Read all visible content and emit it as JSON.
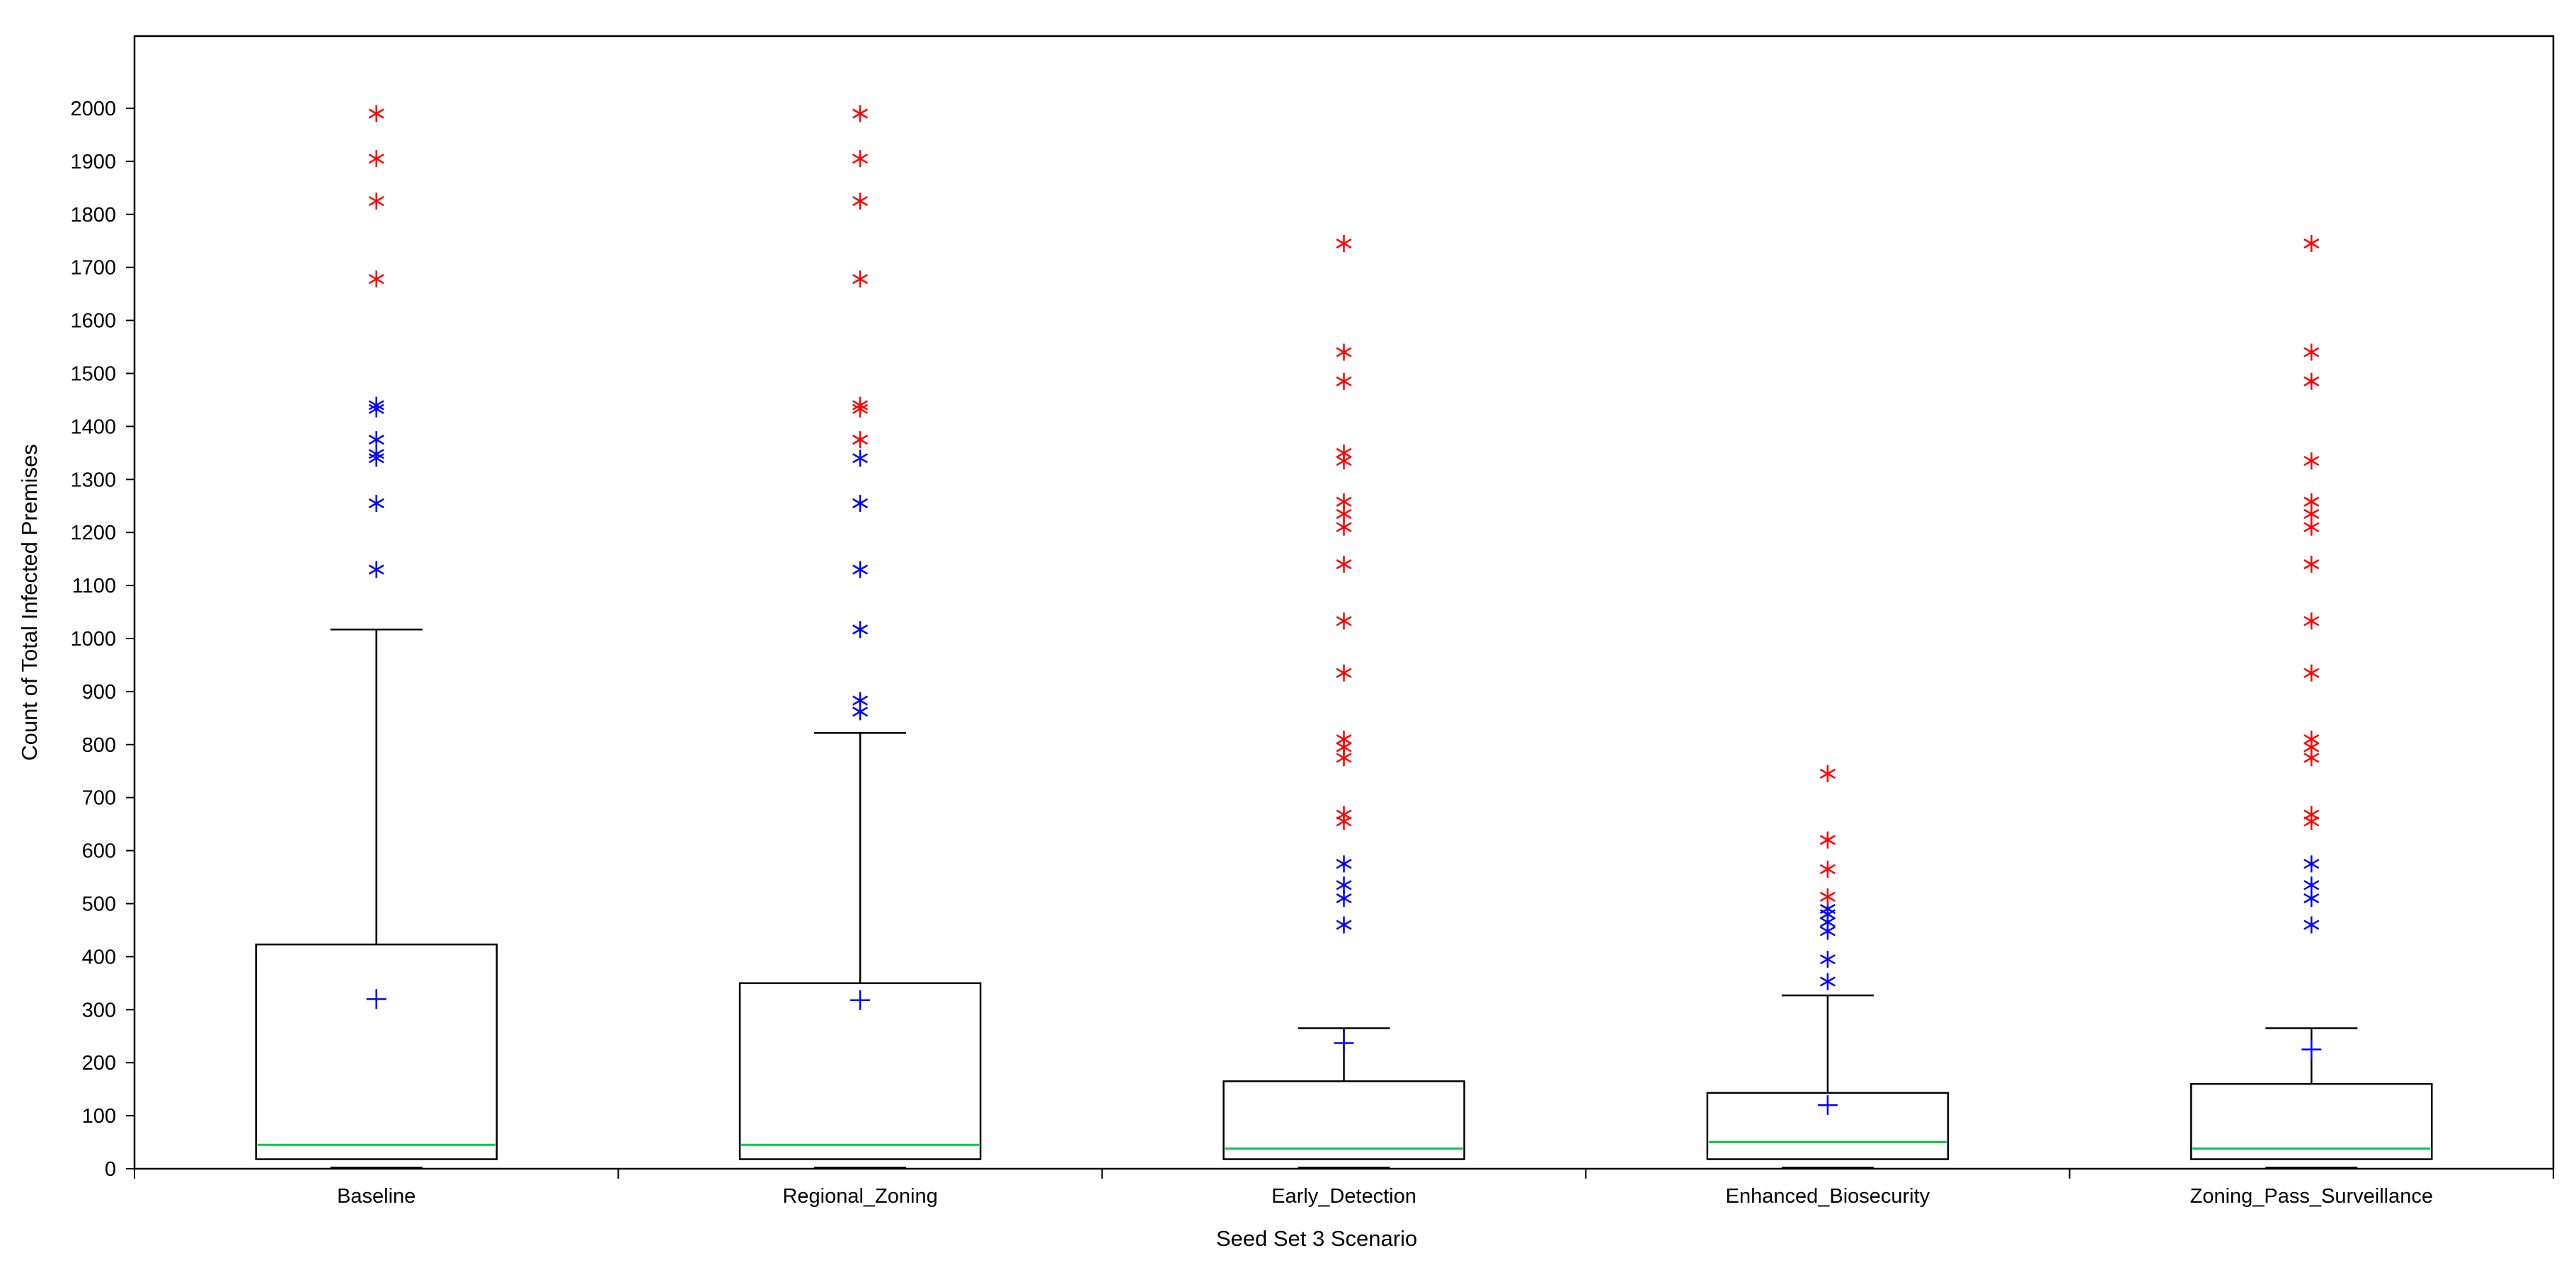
{
  "chart_data": {
    "type": "box",
    "xlabel": "Seed Set 3 Scenario",
    "ylabel": "Count of Total Infected Premises",
    "ylim": [
      0,
      2000
    ],
    "yticks": [
      0,
      100,
      200,
      300,
      400,
      500,
      600,
      700,
      800,
      900,
      1000,
      1100,
      1200,
      1300,
      1400,
      1500,
      1600,
      1700,
      1800,
      1900,
      2000
    ],
    "categories": [
      "Baseline",
      "Regional_Zoning",
      "Early_Detection",
      "Enhanced_Biosecurity",
      "Zoning_Pass_Surveillance"
    ],
    "grid": false,
    "legend": "none",
    "colors": {
      "box": "#000000",
      "median": "#00cc44",
      "mean": "#0000ff",
      "mild_outlier": "#0000ff",
      "extreme_outlier": "#ff0000"
    },
    "boxes": [
      {
        "category": "Baseline",
        "min": 2,
        "q1": 18,
        "median": 45,
        "q3": 423,
        "max": 1017,
        "mean": 320,
        "mild_outliers": [
          1130,
          1255,
          1340,
          1348,
          1375,
          1433,
          1440
        ],
        "extreme_outliers": [
          1678,
          1825,
          1905,
          1990
        ]
      },
      {
        "category": "Regional_Zoning",
        "min": 2,
        "q1": 18,
        "median": 45,
        "q3": 350,
        "max": 822,
        "mean": 318,
        "mild_outliers": [
          862,
          883,
          1017,
          1130,
          1255,
          1340
        ],
        "extreme_outliers": [
          1375,
          1433,
          1440,
          1678,
          1825,
          1905,
          1990
        ]
      },
      {
        "category": "Early_Detection",
        "min": 2,
        "q1": 18,
        "median": 38,
        "q3": 165,
        "max": 265,
        "mean": 237,
        "mild_outliers": [
          460,
          510,
          535,
          575
        ],
        "extreme_outliers": [
          655,
          668,
          775,
          795,
          810,
          935,
          1033,
          1140,
          1210,
          1235,
          1258,
          1335,
          1350,
          1485,
          1540,
          1745
        ]
      },
      {
        "category": "Enhanced_Biosecurity",
        "min": 2,
        "q1": 18,
        "median": 50,
        "q3": 143,
        "max": 327,
        "mean": 120,
        "mild_outliers": [
          353,
          395,
          448,
          465,
          480,
          490
        ],
        "extreme_outliers": [
          513,
          565,
          620,
          745
        ]
      },
      {
        "category": "Zoning_Pass_Surveillance",
        "min": 2,
        "q1": 18,
        "median": 38,
        "q3": 160,
        "max": 265,
        "mean": 225,
        "mild_outliers": [
          460,
          510,
          535,
          575
        ],
        "extreme_outliers": [
          655,
          668,
          775,
          795,
          810,
          935,
          1033,
          1140,
          1210,
          1235,
          1258,
          1335,
          1485,
          1540,
          1745
        ]
      }
    ]
  }
}
